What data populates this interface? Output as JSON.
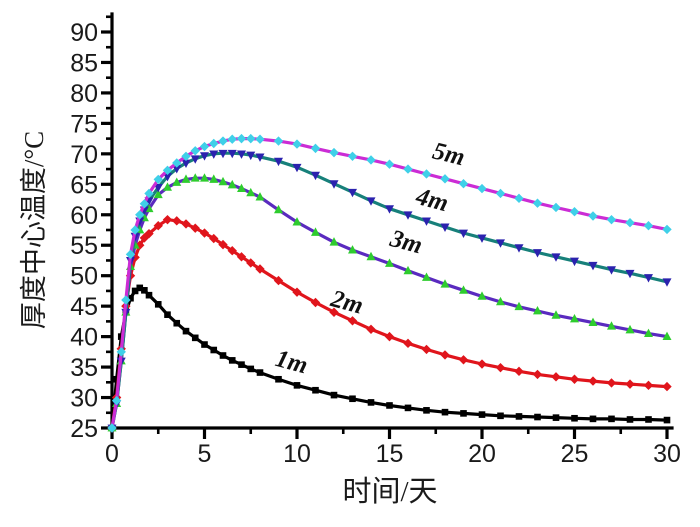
{
  "chart_data": {
    "type": "line",
    "title": "",
    "xlabel": "时间/天",
    "ylabel": "厚度中心温度/°C",
    "xlim": [
      0,
      30
    ],
    "ylim": [
      25,
      90
    ],
    "x_ticks": [
      0,
      5,
      10,
      15,
      20,
      25,
      30
    ],
    "x_minor_ticks": [
      2.5,
      7.5,
      12.5,
      17.5,
      22.5,
      27.5
    ],
    "y_ticks": [
      25,
      30,
      35,
      40,
      45,
      50,
      55,
      60,
      65,
      70,
      75,
      80,
      85,
      90
    ],
    "y_minor_ticks": [
      27.5,
      32.5,
      37.5,
      42.5,
      47.5,
      52.5,
      57.5,
      62.5,
      67.5,
      72.5,
      77.5,
      82.5,
      87.5,
      92.5
    ],
    "grid": false,
    "legend": "inline curve labels",
    "axis_color": "#000000",
    "tick_label_color": "#1a1a1a",
    "x": [
      0,
      0.25,
      0.5,
      0.75,
      1,
      1.25,
      1.5,
      1.75,
      2,
      2.5,
      3,
      3.5,
      4,
      4.5,
      5,
      5.5,
      6,
      6.5,
      7,
      7.5,
      8,
      9,
      10,
      11,
      12,
      13,
      14,
      15,
      16,
      17,
      18,
      19,
      20,
      21,
      22,
      23,
      24,
      25,
      26,
      27,
      28,
      29,
      30
    ],
    "series": [
      {
        "name": "1m",
        "line_color": "#000000",
        "marker": "square",
        "marker_color": "#000000",
        "label": {
          "text": "1m",
          "x": 9.6,
          "y": 34.6,
          "rotation": 15
        },
        "y": [
          25,
          33,
          40,
          44,
          46.3,
          47.5,
          48,
          47.6,
          46.8,
          45.3,
          43.6,
          42.2,
          40.9,
          39.8,
          38.7,
          37.8,
          36.9,
          36.1,
          35.4,
          34.7,
          34.1,
          33,
          32,
          31.2,
          30.4,
          29.8,
          29.2,
          28.7,
          28.3,
          27.9,
          27.6,
          27.4,
          27.2,
          27,
          26.9,
          26.8,
          26.7,
          26.6,
          26.5,
          26.5,
          26.4,
          26.4,
          26.3
        ]
      },
      {
        "name": "2m",
        "line_color": "#e0151c",
        "marker": "diamond",
        "marker_color": "#e0151c",
        "label": {
          "text": "2m",
          "x": 12.6,
          "y": 44.4,
          "rotation": 15
        },
        "y": [
          25,
          30,
          38,
          45,
          50,
          53,
          55,
          56.2,
          56.9,
          58.2,
          59.2,
          59,
          58.5,
          57.8,
          57,
          56.1,
          55.1,
          54.1,
          53.1,
          52.1,
          51.1,
          49.2,
          47.3,
          45.6,
          44,
          42.6,
          41.2,
          40,
          38.9,
          37.9,
          37,
          36.2,
          35.5,
          34.9,
          34.3,
          33.8,
          33.4,
          33,
          32.7,
          32.4,
          32.2,
          32,
          31.8
        ]
      },
      {
        "name": "3m",
        "line_color": "#5a2abf",
        "marker": "triangle-up",
        "marker_color": "#2ecc2e",
        "label": {
          "text": "3m",
          "x": 15.8,
          "y": 54.3,
          "rotation": 15
        },
        "y": [
          25,
          29,
          36,
          44,
          51.5,
          55,
          57.5,
          59.5,
          61,
          63.3,
          64.5,
          65.3,
          65.8,
          66,
          66,
          65.8,
          65.4,
          64.9,
          64.3,
          63.6,
          62.9,
          60.8,
          58.8,
          57.1,
          55.5,
          54.2,
          53.1,
          52,
          50.8,
          49.7,
          48.6,
          47.6,
          46.6,
          45.7,
          44.9,
          44.2,
          43.5,
          42.9,
          42.3,
          41.7,
          41.1,
          40.5,
          40
        ]
      },
      {
        "name": "4m",
        "line_color": "#17807a",
        "marker": "triangle-down",
        "marker_color": "#2b22ae",
        "label": {
          "text": "4m",
          "x": 17.2,
          "y": 61.2,
          "rotation": 15
        },
        "y": [
          25,
          29,
          36,
          44,
          52.5,
          56.5,
          59,
          60.8,
          62.3,
          64.5,
          66.3,
          67.6,
          68.5,
          69.2,
          69.7,
          70,
          70.1,
          70.1,
          70,
          69.8,
          69.5,
          68.8,
          67.8,
          66.5,
          65.1,
          63.7,
          62.3,
          61,
          60,
          59,
          58,
          57,
          56.2,
          55.4,
          54.6,
          53.8,
          53.1,
          52.4,
          51.7,
          51,
          50.4,
          49.7,
          49
        ]
      },
      {
        "name": "5m",
        "line_color": "#cb2cd5",
        "marker": "diamond",
        "marker_color": "#3fd0e8",
        "label": {
          "text": "5m",
          "x": 18.1,
          "y": 68.7,
          "rotation": 14
        },
        "y": [
          25,
          29.5,
          37.5,
          46,
          53.5,
          57.5,
          60,
          61.8,
          63.5,
          65.8,
          67.3,
          68.5,
          69.6,
          70.5,
          71.2,
          71.7,
          72.1,
          72.4,
          72.5,
          72.5,
          72.4,
          72.1,
          71.6,
          70.9,
          70.2,
          69.6,
          69,
          68.3,
          67.5,
          66.7,
          65.9,
          65.1,
          64.3,
          63.5,
          62.7,
          61.9,
          61.2,
          60.5,
          59.8,
          59.2,
          58.7,
          58.2,
          57.6
        ]
      }
    ]
  }
}
